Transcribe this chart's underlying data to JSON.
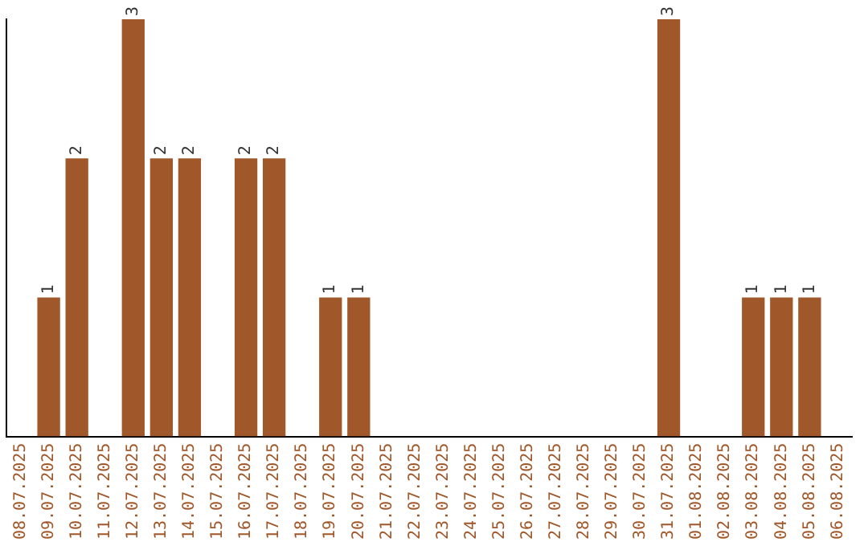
{
  "chart_data": {
    "type": "bar",
    "categories": [
      "08.07.2025",
      "09.07.2025",
      "10.07.2025",
      "11.07.2025",
      "12.07.2025",
      "13.07.2025",
      "14.07.2025",
      "15.07.2025",
      "16.07.2025",
      "17.07.2025",
      "18.07.2025",
      "19.07.2025",
      "20.07.2025",
      "21.07.2025",
      "22.07.2025",
      "23.07.2025",
      "24.07.2025",
      "25.07.2025",
      "26.07.2025",
      "27.07.2025",
      "28.07.2025",
      "29.07.2025",
      "30.07.2025",
      "31.07.2025",
      "01.08.2025",
      "02.08.2025",
      "03.08.2025",
      "04.08.2025",
      "05.08.2025",
      "06.08.2025"
    ],
    "values": [
      0,
      1,
      2,
      0,
      3,
      2,
      2,
      0,
      2,
      2,
      0,
      1,
      1,
      0,
      0,
      0,
      0,
      0,
      0,
      0,
      0,
      0,
      0,
      3,
      0,
      0,
      1,
      1,
      1,
      0
    ],
    "value_labels": [
      null,
      "1",
      "2",
      null,
      "3",
      "2",
      "2",
      null,
      "2",
      "2",
      null,
      "1",
      "1",
      null,
      null,
      null,
      null,
      null,
      null,
      null,
      null,
      null,
      null,
      "3",
      null,
      null,
      "1",
      "1",
      "1",
      null
    ],
    "color": "#a0582a",
    "tick_labels": "x",
    "grid": false,
    "legend": false
  }
}
